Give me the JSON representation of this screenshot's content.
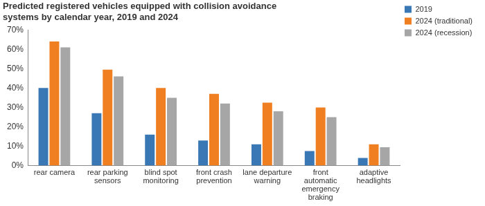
{
  "chart_data": {
    "type": "bar",
    "title": [
      "Predicted registered vehicles equipped with collision avoidance",
      "systems by calendar year, 2019 and 2024"
    ],
    "categories": [
      "rear camera",
      "rear parking sensors",
      "blind spot monitoring",
      "front crash prevention",
      "lane departure warning",
      "front automatic emergency braking",
      "adaptive headlights"
    ],
    "series": [
      {
        "name": "2019",
        "color": "#3a78b5",
        "values": [
          40,
          27,
          16,
          13,
          11,
          7.5,
          4
        ]
      },
      {
        "name": "2024 (traditional)",
        "color": "#f07f22",
        "values": [
          64,
          49.5,
          40,
          37,
          32.5,
          30,
          11
        ]
      },
      {
        "name": "2024 (recession)",
        "color": "#a6a6a6",
        "values": [
          61,
          46,
          35,
          32,
          28,
          25,
          9.5
        ]
      }
    ],
    "ylim": [
      0,
      70
    ],
    "yticks": [
      {
        "value": 0,
        "label": "0%"
      },
      {
        "value": 10,
        "label": "10%"
      },
      {
        "value": 20,
        "label": "20%"
      },
      {
        "value": 30,
        "label": "30%"
      },
      {
        "value": 40,
        "label": "40%"
      },
      {
        "value": 50,
        "label": "50%"
      },
      {
        "value": 60,
        "label": "60%"
      },
      {
        "value": 70,
        "label": "70%"
      }
    ],
    "grid": false,
    "legend": "right"
  }
}
